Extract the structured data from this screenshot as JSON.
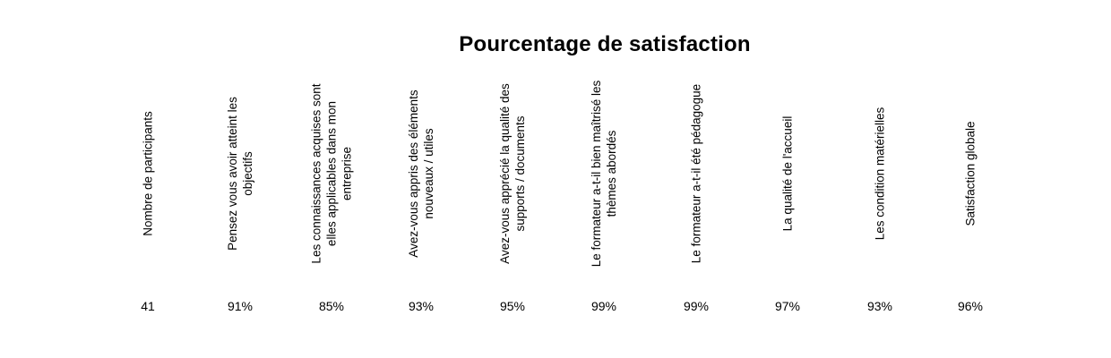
{
  "title": "Pourcentage de satisfaction",
  "columns": [
    {
      "header": "Nombre de participants",
      "value": "41"
    },
    {
      "header": "Pensez vous avoir atteint les objectifs",
      "value": "91%"
    },
    {
      "header": "Les connaissances acquises sont elles applicables dans mon entreprise",
      "value": "85%"
    },
    {
      "header": "Avez-vous appris des éléments nouveaux / utiles",
      "value": "93%"
    },
    {
      "header": "Avez-vous apprécié la qualité des supports / documents",
      "value": "95%"
    },
    {
      "header": "Le formateur a-t-il bien maîtrisé les thèmes abordés",
      "value": "99%"
    },
    {
      "header": "Le formateur a-t-il été pédagogue",
      "value": "99%"
    },
    {
      "header": "La qualité de l'accueil",
      "value": "97%"
    },
    {
      "header": "Les condition matérielles",
      "value": "93%"
    },
    {
      "header": "Satisfaction globale",
      "value": "96%"
    }
  ]
}
